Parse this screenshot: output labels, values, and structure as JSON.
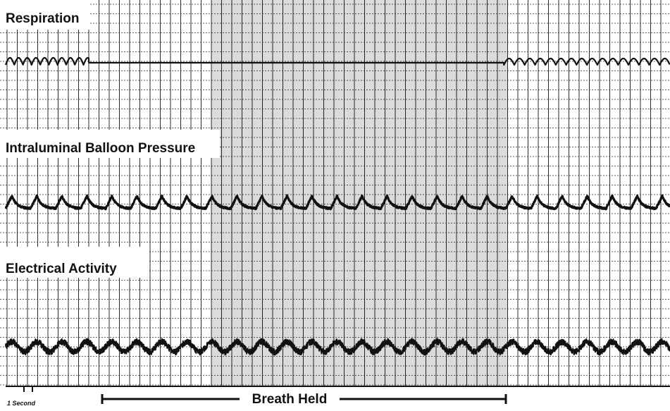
{
  "chart_data": {
    "type": "line",
    "title": "",
    "xlabel": "",
    "ylabel": "",
    "panels": [
      {
        "key": "respiration",
        "label": "Respiration"
      },
      {
        "key": "pressure",
        "label": "Intraluminal Balloon Pressure"
      },
      {
        "key": "electrical",
        "label": "Electrical Activity"
      }
    ],
    "time_marker": {
      "label": "1 Second"
    },
    "annotation": {
      "label": "Breath Held"
    },
    "series": [
      {
        "key": "respiration",
        "segments": [
          {
            "t0": 0.0,
            "t1": 4.0,
            "cycles_per_s": 2.4,
            "amplitude": 1.0
          },
          {
            "t0": 4.0,
            "t1": 24.0,
            "cycles_per_s": 0,
            "amplitude": 0.0
          },
          {
            "t0": 24.0,
            "t1": 32.0,
            "cycles_per_s": 2.0,
            "amplitude": 0.9
          }
        ]
      },
      {
        "key": "pressure",
        "waves_per_s": 0.83,
        "amplitude": 1.0
      },
      {
        "key": "electrical",
        "waves_per_s": 0.83,
        "amplitude": 0.45,
        "noise": 0.35
      }
    ],
    "grid": true,
    "duration_s": 32
  },
  "colors": {
    "trace": "#111111",
    "grid": "#2b2b2b",
    "label_bg": "#ffffff"
  }
}
